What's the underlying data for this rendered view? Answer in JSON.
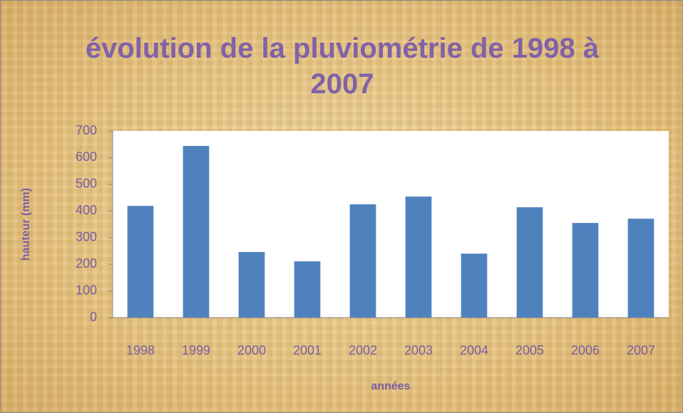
{
  "chart_data": {
    "type": "bar",
    "title": "évolution de la pluviométrie de 1998 à 2007",
    "x_label": "années",
    "y_label": "hauteur (mm)",
    "categories": [
      "1998",
      "1999",
      "2000",
      "2001",
      "2002",
      "2003",
      "2004",
      "2005",
      "2006",
      "2007"
    ],
    "values": [
      419,
      644,
      246,
      211,
      425,
      454,
      240,
      414,
      355,
      371
    ],
    "color": "#4f81bd",
    "ylim": [
      0,
      700
    ],
    "yticks": [
      0,
      100,
      200,
      300,
      400,
      500,
      600,
      700
    ],
    "grid": false
  }
}
